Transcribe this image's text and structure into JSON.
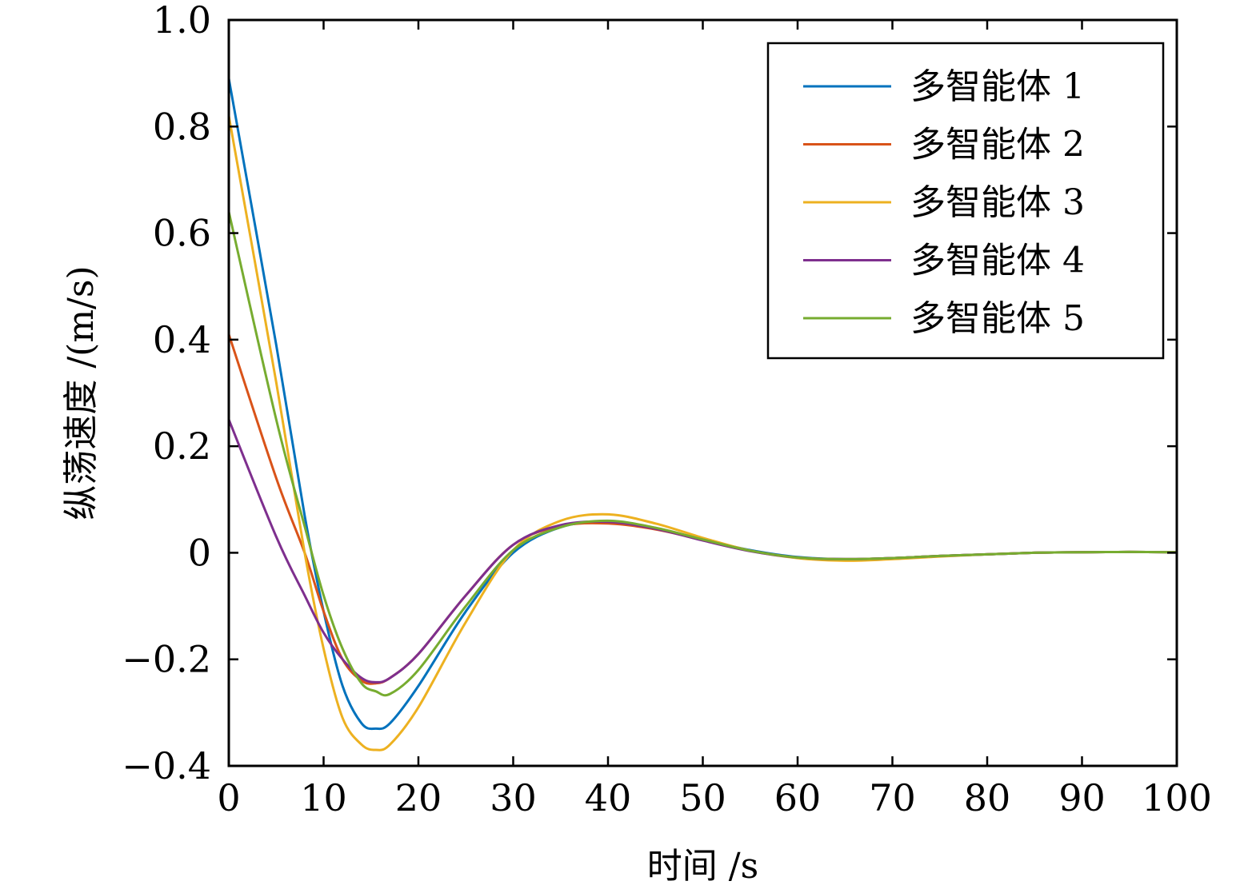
{
  "chart_data": {
    "type": "line",
    "xlabel": "时间 /s",
    "ylabel": "纵荡速度 /(m/s)",
    "xlim": [
      0,
      100
    ],
    "ylim": [
      -0.4,
      1.0
    ],
    "x_ticks": [
      0,
      10,
      20,
      30,
      40,
      50,
      60,
      70,
      80,
      90,
      100
    ],
    "y_ticks": [
      -0.4,
      -0.2,
      0,
      0.2,
      0.4,
      0.6,
      0.8,
      1.0
    ],
    "x_tick_labels": [
      "0",
      "10",
      "20",
      "30",
      "40",
      "50",
      "60",
      "70",
      "80",
      "90",
      "100"
    ],
    "y_tick_labels": [
      "−0.4",
      "−0.2",
      "0",
      "0.2",
      "0.4",
      "0.6",
      "0.8",
      "1.0"
    ],
    "grid": false,
    "legend_position": "top-right",
    "x": [
      0,
      5,
      8,
      10,
      12,
      14,
      15.5,
      17,
      20,
      25,
      30,
      35,
      40,
      45,
      50,
      55,
      60,
      65,
      70,
      75,
      80,
      85,
      90,
      95,
      100
    ],
    "series": [
      {
        "name": "多智能体 1",
        "color": "#0072BD",
        "values": [
          0.89,
          0.39,
          0.07,
          -0.11,
          -0.25,
          -0.32,
          -0.33,
          -0.32,
          -0.25,
          -0.11,
          0.0,
          0.048,
          0.058,
          0.046,
          0.025,
          0.005,
          -0.008,
          -0.012,
          -0.01,
          -0.006,
          -0.003,
          0.0,
          0.001,
          0.0015,
          0.001
        ]
      },
      {
        "name": "多智能体 2",
        "color": "#D95319",
        "values": [
          0.41,
          0.14,
          0.0,
          -0.11,
          -0.2,
          -0.24,
          -0.245,
          -0.235,
          -0.19,
          -0.08,
          0.015,
          0.05,
          0.055,
          0.044,
          0.024,
          0.004,
          -0.009,
          -0.012,
          -0.01,
          -0.006,
          -0.003,
          0.0,
          0.001,
          0.0015,
          0.001
        ]
      },
      {
        "name": "多智能体 3",
        "color": "#EDB120",
        "values": [
          0.82,
          0.32,
          0.0,
          -0.18,
          -0.31,
          -0.36,
          -0.37,
          -0.36,
          -0.29,
          -0.13,
          0.005,
          0.06,
          0.072,
          0.055,
          0.028,
          0.004,
          -0.01,
          -0.015,
          -0.012,
          -0.007,
          -0.003,
          0.0,
          0.001,
          0.0015,
          0.001
        ]
      },
      {
        "name": "多智能体 4",
        "color": "#7E2F8E",
        "values": [
          0.25,
          0.03,
          -0.08,
          -0.15,
          -0.2,
          -0.235,
          -0.243,
          -0.235,
          -0.19,
          -0.08,
          0.015,
          0.052,
          0.058,
          0.045,
          0.023,
          0.003,
          -0.009,
          -0.012,
          -0.01,
          -0.006,
          -0.003,
          0.0,
          0.001,
          0.0015,
          0.001
        ]
      },
      {
        "name": "多智能体 5",
        "color": "#77AC30",
        "values": [
          0.64,
          0.25,
          0.05,
          -0.08,
          -0.18,
          -0.245,
          -0.26,
          -0.265,
          -0.22,
          -0.1,
          0.005,
          0.048,
          0.06,
          0.047,
          0.025,
          0.004,
          -0.009,
          -0.012,
          -0.01,
          -0.006,
          -0.003,
          0.0,
          0.001,
          0.0015,
          0.001
        ]
      }
    ]
  }
}
